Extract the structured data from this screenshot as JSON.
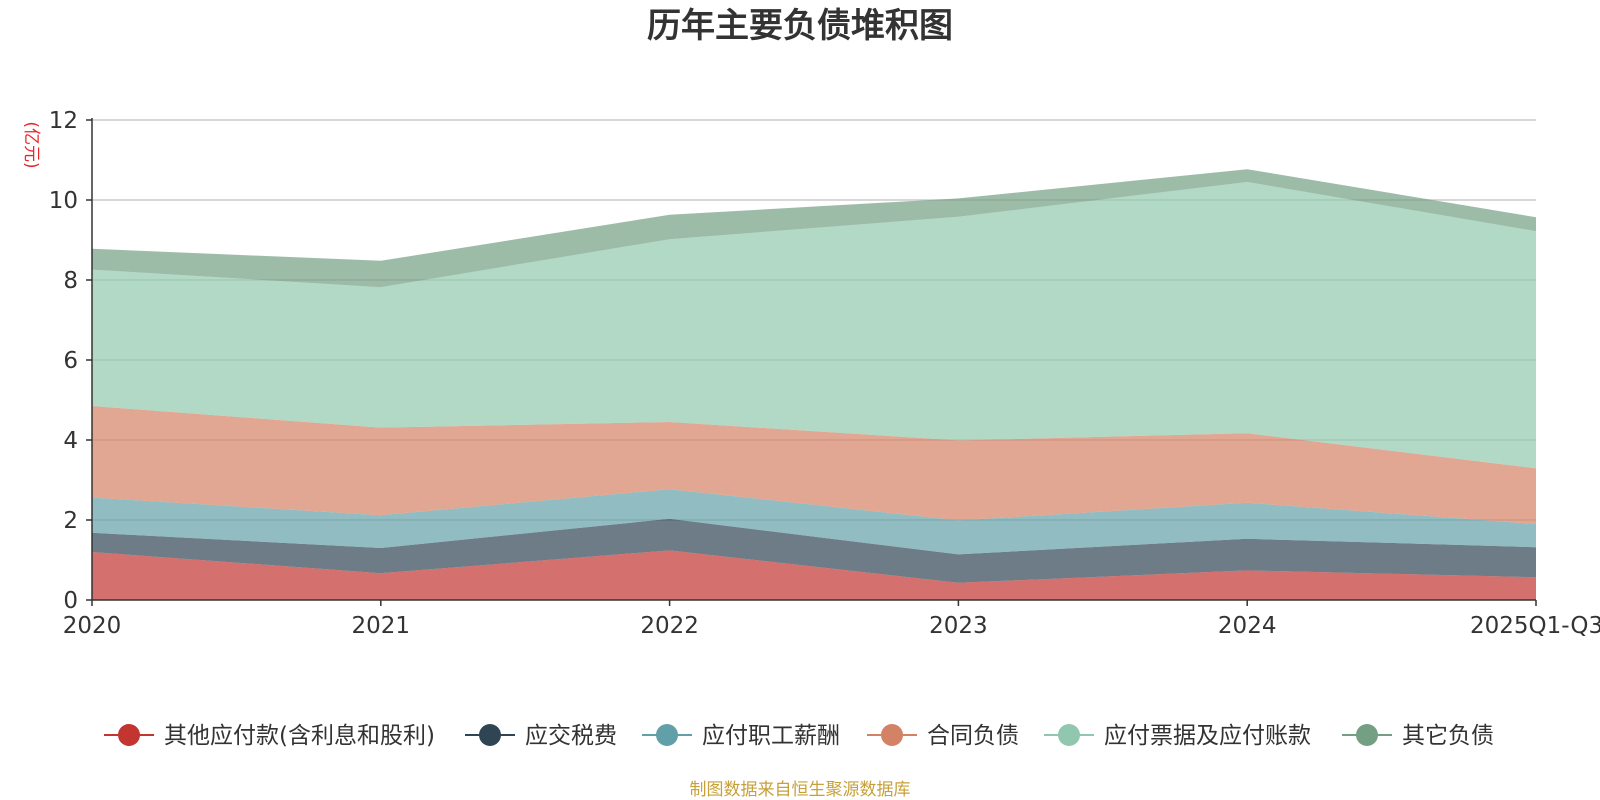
{
  "chart_data": {
    "type": "area",
    "stacked": true,
    "title": "历年主要负债堆积图",
    "y_unit": "(亿元)",
    "categories": [
      "2020",
      "2021",
      "2022",
      "2023",
      "2024",
      "2025Q1-Q3"
    ],
    "ylim": [
      0,
      12
    ],
    "yticks": [
      0,
      2,
      4,
      6,
      8,
      10,
      12
    ],
    "grid": true,
    "legend_position": "bottom",
    "series": [
      {
        "name": "其他应付款(含利息和股利)",
        "color": "#c23531",
        "values": [
          1.2,
          0.67,
          1.24,
          0.43,
          0.74,
          0.57
        ]
      },
      {
        "name": "应交税费",
        "color": "#2f4554",
        "values": [
          0.48,
          0.63,
          0.79,
          0.71,
          0.79,
          0.75
        ]
      },
      {
        "name": "应付职工薪酬",
        "color": "#61a0a8",
        "values": [
          0.88,
          0.82,
          0.74,
          0.85,
          0.9,
          0.58
        ]
      },
      {
        "name": "合同负债",
        "color": "#d48265",
        "values": [
          2.29,
          2.19,
          1.68,
          2.0,
          1.74,
          1.39
        ]
      },
      {
        "name": "应付票据及应付账款",
        "color": "#91c7ae",
        "values": [
          3.41,
          3.51,
          4.57,
          5.59,
          6.28,
          5.93
        ]
      },
      {
        "name": "其它负债",
        "color": "#749f83",
        "values": [
          0.52,
          0.66,
          0.61,
          0.46,
          0.32,
          0.35
        ]
      }
    ],
    "source_note": "制图数据来自恒生聚源数据库"
  }
}
